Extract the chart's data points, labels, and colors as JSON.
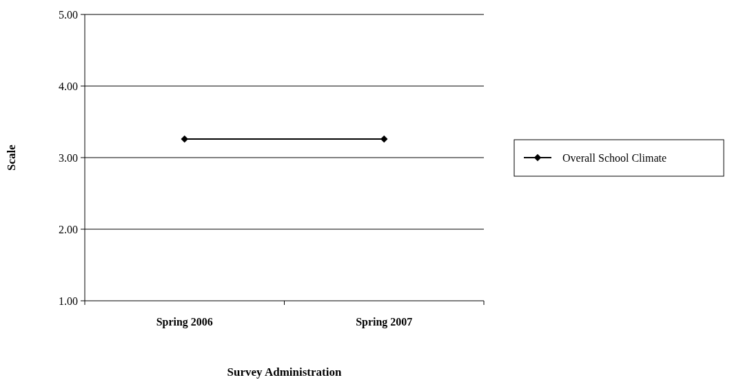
{
  "chart_data": {
    "type": "line",
    "xlabel": "Survey Administration",
    "ylabel": "Scale",
    "categories": [
      "Spring 2006",
      "Spring 2007"
    ],
    "series": [
      {
        "name": "Overall School Climate",
        "color": "#000000",
        "values": [
          3.26,
          3.26
        ]
      }
    ],
    "ylim": [
      1,
      5
    ],
    "yticks": [
      {
        "value": 1,
        "label": "1.00"
      },
      {
        "value": 2,
        "label": "2.00"
      },
      {
        "value": 3,
        "label": "3.00"
      },
      {
        "value": 4,
        "label": "4.00"
      },
      {
        "value": 5,
        "label": "5.00"
      }
    ],
    "grid": "y",
    "legend": "right",
    "marker": "diamond",
    "line_style": "solid"
  }
}
